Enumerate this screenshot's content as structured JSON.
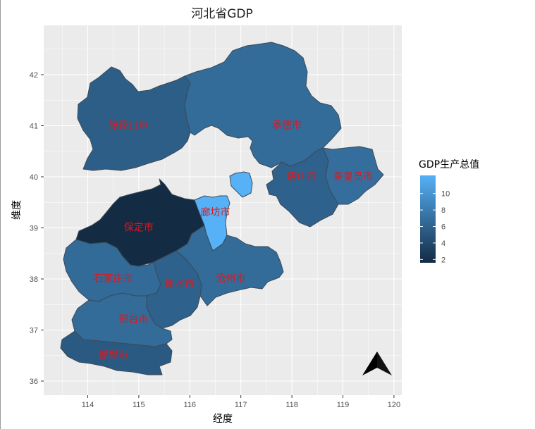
{
  "title": "河北省GDP",
  "xlabel": "经度",
  "ylabel": "维度",
  "x_ticks": [
    "114",
    "115",
    "116",
    "117",
    "118",
    "119",
    "120"
  ],
  "y_ticks": [
    "36",
    "37",
    "38",
    "39",
    "40",
    "41",
    "42"
  ],
  "legend": {
    "title": "GDP生产总值",
    "ticks": [
      "2",
      "4",
      "6",
      "8",
      "10"
    ],
    "low_color": "#132B43",
    "high_color": "#56B1F7"
  },
  "north_arrow": "north-arrow-icon",
  "chart_data": {
    "type": "choropleth",
    "title": "河北省GDP",
    "xlabel": "经度",
    "ylabel": "维度",
    "xlim": [
      113.2,
      120.2
    ],
    "ylim": [
      35.8,
      43.0
    ],
    "grid": true,
    "legend_placement": "right",
    "value_range": [
      2,
      12
    ],
    "regions": [
      {
        "name": "张家口市",
        "lon": 114.8,
        "lat": 41.0,
        "value": 5.8
      },
      {
        "name": "承德市",
        "lon": 117.9,
        "lat": 41.0,
        "value": 6.8
      },
      {
        "name": "唐山市",
        "lon": 118.2,
        "lat": 40.0,
        "value": 6.0
      },
      {
        "name": "秦皇岛市",
        "lon": 119.2,
        "lat": 40.0,
        "value": 7.0
      },
      {
        "name": "保定市",
        "lon": 115.0,
        "lat": 39.0,
        "value": 2.0
      },
      {
        "name": "廊坊市",
        "lon": 116.5,
        "lat": 39.3,
        "value": 12.0
      },
      {
        "name": "石家庄市",
        "lon": 114.5,
        "lat": 38.0,
        "value": 6.7
      },
      {
        "name": "衡水市",
        "lon": 115.8,
        "lat": 37.9,
        "value": 6.0
      },
      {
        "name": "沧州市",
        "lon": 116.8,
        "lat": 38.0,
        "value": 6.8
      },
      {
        "name": "邢台市",
        "lon": 114.9,
        "lat": 37.2,
        "value": 6.8
      },
      {
        "name": "邯郸市",
        "lon": 114.5,
        "lat": 36.5,
        "value": 5.5
      }
    ]
  }
}
